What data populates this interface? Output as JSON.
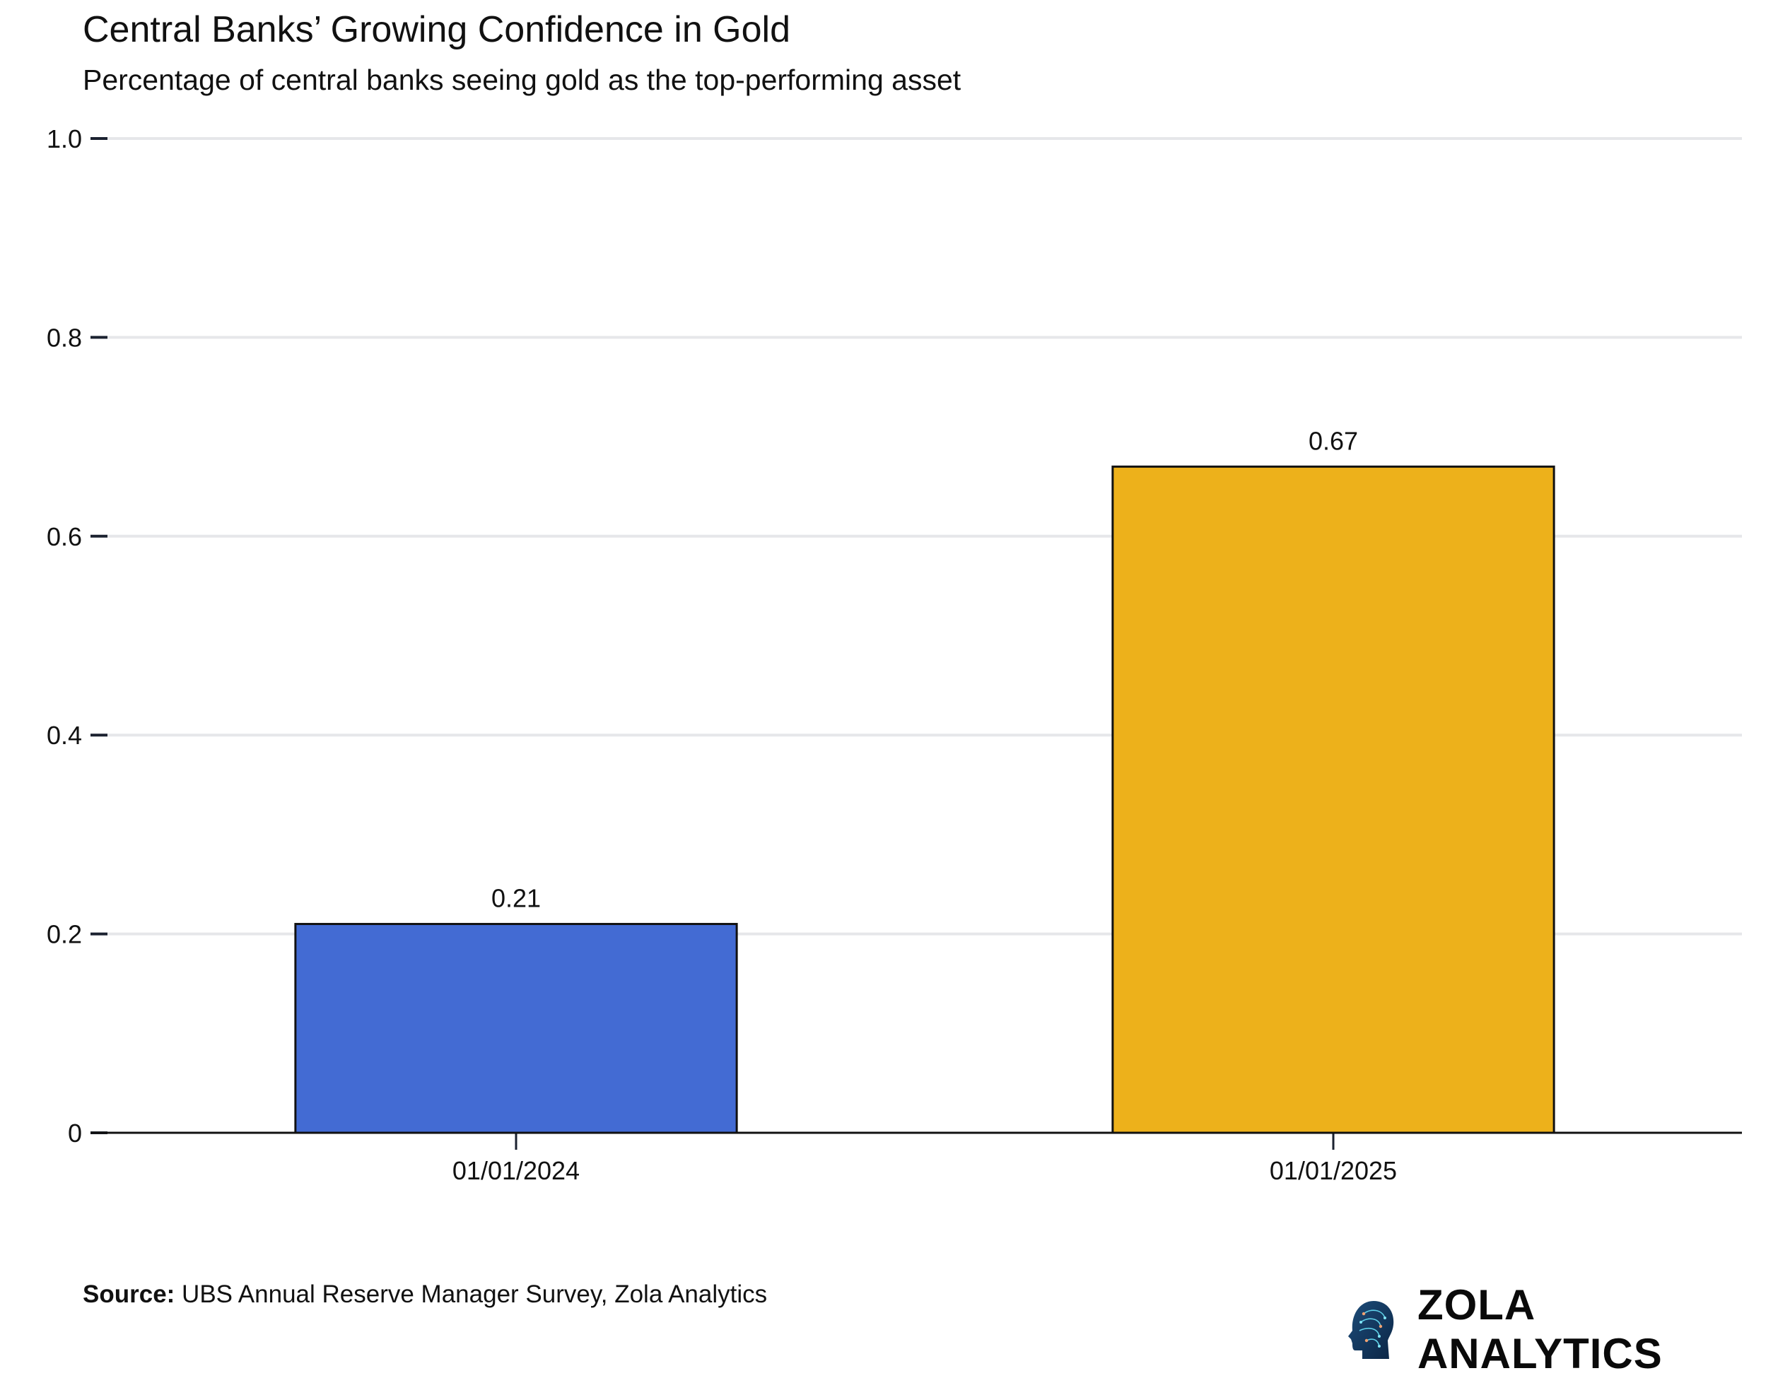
{
  "header": {
    "title": "Central Banks’ Growing Confidence in Gold",
    "subtitle": "Percentage of central banks seeing gold as the top-performing asset"
  },
  "chart_data": {
    "type": "bar",
    "title": "Central Banks’ Growing Confidence in Gold",
    "subtitle": "Percentage of central banks seeing gold as the top-performing asset",
    "categories": [
      "01/01/2024",
      "01/01/2025"
    ],
    "values": [
      0.21,
      0.67
    ],
    "data_labels": [
      "0.21",
      "0.67"
    ],
    "bar_colors": [
      "#436BD3",
      "#EDB11B"
    ],
    "ylim": [
      0,
      1.0
    ],
    "yticks": [
      0,
      0.2,
      0.4,
      0.6,
      0.8,
      1.0
    ],
    "ytick_labels": [
      "0",
      "0.2",
      "0.4",
      "0.6",
      "0.8",
      "1.0"
    ],
    "xlabel": "",
    "ylabel": "",
    "grid": "horizontal",
    "legend": "none"
  },
  "footer": {
    "source_label": "Source:",
    "source_text": " UBS Annual Reserve Manager Survey, Zola Analytics",
    "logo_text": "ZOLA ANALYTICS"
  }
}
